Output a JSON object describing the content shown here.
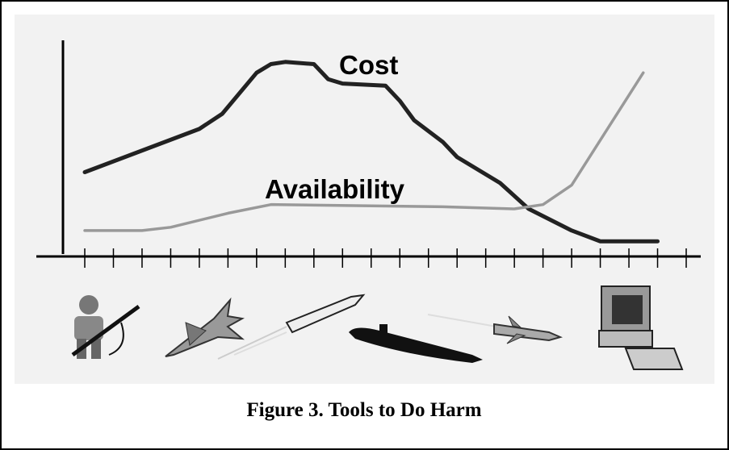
{
  "chart_data": {
    "type": "line",
    "caption": "Figure 3.  Tools to Do Harm",
    "xlim": [
      0,
      21
    ],
    "ylim": [
      0,
      100
    ],
    "xticks": [
      0,
      1,
      2,
      3,
      4,
      5,
      6,
      7,
      8,
      9,
      10,
      11,
      12,
      13,
      14,
      15,
      16,
      17,
      18,
      19,
      20,
      21
    ],
    "series": [
      {
        "name": "Cost",
        "color": "#222222",
        "x": [
          0,
          4,
          4.8,
          6,
          6.5,
          7,
          8,
          8.5,
          9,
          10.5,
          11,
          11.5,
          12.5,
          13,
          14.5,
          15.5,
          17,
          18,
          18.5,
          20
        ],
        "values": [
          39,
          59,
          66,
          85,
          89,
          90,
          89,
          82,
          80,
          79,
          72,
          63,
          53,
          46,
          34,
          22,
          12,
          7,
          7,
          7
        ]
      },
      {
        "name": "Availability",
        "color": "#999999",
        "x": [
          0,
          2,
          3,
          5,
          6.5,
          12.5,
          15,
          16,
          17,
          19.5
        ],
        "values": [
          12,
          12,
          13.5,
          20,
          24,
          23,
          22,
          24,
          33,
          85
        ]
      }
    ]
  }
}
